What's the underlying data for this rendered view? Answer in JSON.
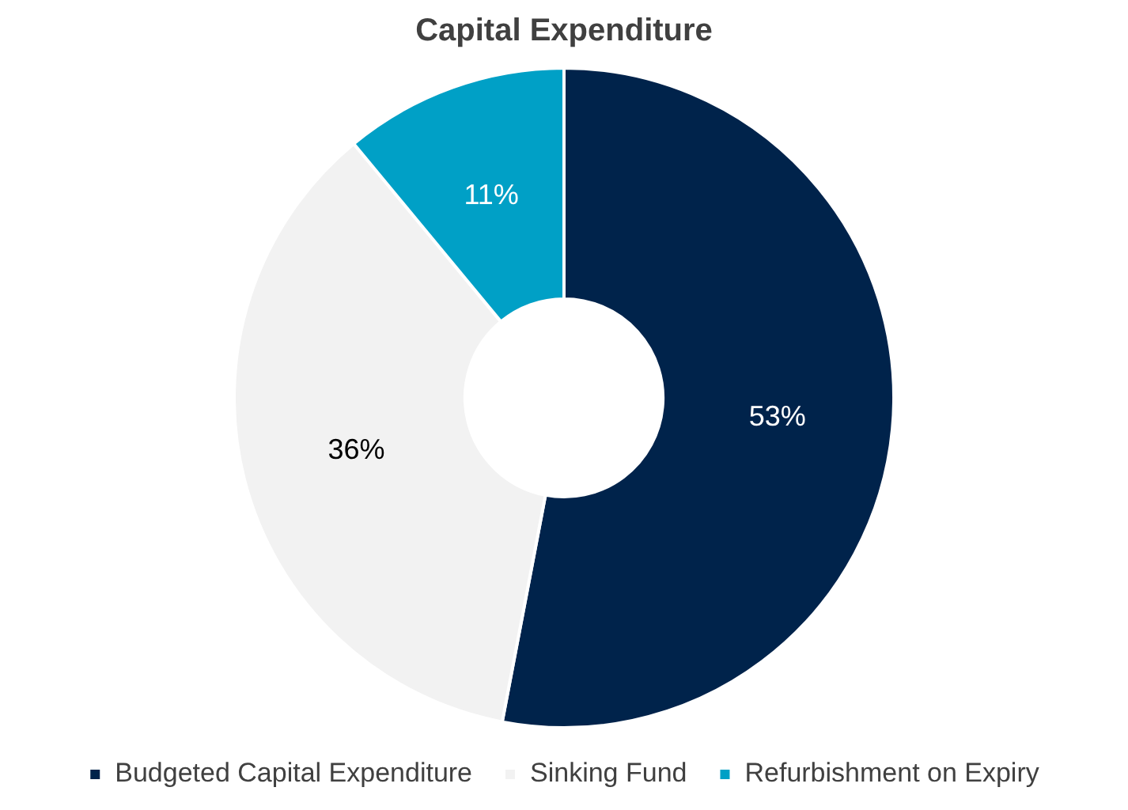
{
  "chart_data": {
    "type": "donut",
    "title": "Capital Expenditure",
    "categories": [
      "Budgeted Capital Expenditure",
      "Sinking Fund",
      "Refurbishment on Expiry"
    ],
    "values": [
      53,
      36,
      11
    ],
    "colors": [
      "#00234b",
      "#f2f2f2",
      "#00a0c6"
    ],
    "value_labels": [
      "53%",
      "36%",
      "11%"
    ],
    "legend": "bottom"
  }
}
